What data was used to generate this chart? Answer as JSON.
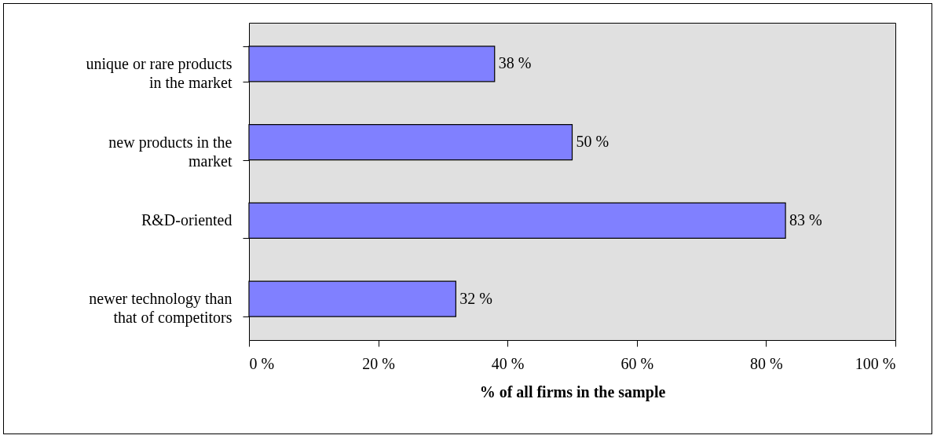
{
  "chart_data": {
    "type": "bar",
    "orientation": "horizontal",
    "categories": [
      "unique or rare products in the market",
      "new products in the market",
      "R&D-oriented",
      "newer technology than that of competitors"
    ],
    "values": [
      38,
      50,
      83,
      32
    ],
    "value_labels": [
      "38 %",
      "50 %",
      "83 %",
      "32 %"
    ],
    "color": "#8080ff",
    "xlim": [
      0,
      100
    ],
    "xticks": [
      {
        "value": 0,
        "label": "0 %"
      },
      {
        "value": 20,
        "label": "20 %"
      },
      {
        "value": 40,
        "label": "40 %"
      },
      {
        "value": 60,
        "label": "60 %"
      },
      {
        "value": 80,
        "label": "80 %"
      },
      {
        "value": 100,
        "label": "100 %"
      }
    ],
    "xlabel": "% of all firms in the sample",
    "grid": false
  }
}
